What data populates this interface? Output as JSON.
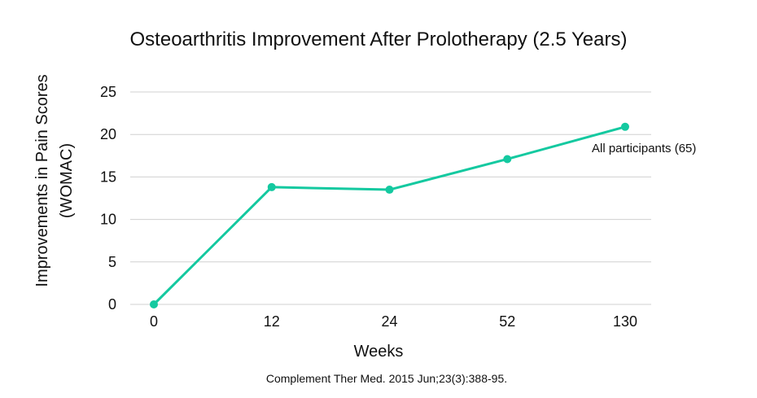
{
  "chart_data": {
    "type": "line",
    "title": "Osteoarthritis Improvement After Prolotherapy (2.5 Years)",
    "xlabel": "Weeks",
    "ylabel_lines": [
      "Improvements in Pain Scores",
      "(WOMAC)"
    ],
    "categories": [
      "0",
      "12",
      "24",
      "52",
      "130"
    ],
    "yticks": [
      "0",
      "5",
      "10",
      "15",
      "20",
      "25"
    ],
    "ylim": [
      0,
      25
    ],
    "grid": true,
    "series": [
      {
        "name": "All participants (65)",
        "values": [
          0,
          13.8,
          13.5,
          17.1,
          20.9
        ],
        "color": "#14c9a0"
      }
    ],
    "source": "Complement Ther Med. 2015 Jun;23(3):388-95."
  }
}
